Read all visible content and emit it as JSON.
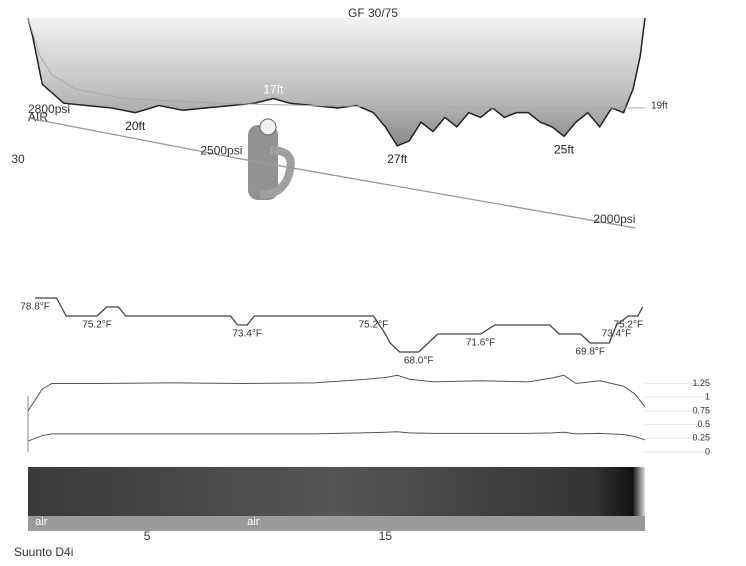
{
  "title": "GF 30/75",
  "dive_computer": "Suunto D4i",
  "tank_label": "AIR",
  "chart_data": {
    "type": "line",
    "x": [
      0,
      0.2,
      0.6,
      1.5,
      2.5,
      3.5,
      4.5,
      5.5,
      6.5,
      7.5,
      8.5,
      9.5,
      10.3,
      11,
      12,
      13,
      13.8,
      14.5,
      15,
      15.5,
      16,
      16.5,
      17,
      17.5,
      18,
      18.5,
      19,
      19.5,
      20,
      20.5,
      21,
      21.5,
      22,
      22.5,
      23,
      23.5,
      24,
      24.5,
      25,
      25.4,
      25.7,
      25.9
    ],
    "values": [
      0,
      4,
      14,
      18,
      18.5,
      19,
      20,
      18.5,
      19.5,
      19,
      18.5,
      18,
      17,
      18,
      18.5,
      19,
      18.5,
      20,
      23,
      27,
      26,
      22,
      24,
      21,
      23,
      20,
      21,
      19,
      21,
      20,
      20,
      22,
      23,
      25,
      22,
      20,
      23,
      19,
      20,
      15,
      8,
      0
    ],
    "value_labels": [
      null,
      null,
      null,
      null,
      null,
      null,
      "20ft",
      null,
      null,
      null,
      null,
      null,
      "17ft",
      null,
      null,
      null,
      null,
      null,
      null,
      "27ft",
      null,
      null,
      null,
      null,
      null,
      null,
      null,
      null,
      null,
      null,
      null,
      null,
      null,
      "25ft",
      null,
      null,
      null,
      null,
      null,
      null,
      null,
      null
    ],
    "xlim": [
      0,
      25.9
    ],
    "xticks": [
      5,
      15
    ],
    "ylim": [
      0,
      30
    ],
    "yticks": [
      30
    ],
    "mean_depth": {
      "x": [
        0,
        0.5,
        1,
        2,
        4,
        8,
        12,
        16,
        20,
        25.9
      ],
      "values": [
        0,
        8,
        12,
        15,
        17,
        18,
        18.5,
        18.8,
        19,
        19
      ],
      "value_labels": [
        null,
        null,
        null,
        null,
        null,
        null,
        null,
        null,
        null,
        "19ft"
      ]
    },
    "pressure": {
      "x": [
        0,
        9,
        25.5
      ],
      "values": [
        2800,
        2500,
        2000
      ],
      "value_labels": [
        "2800psi",
        "2500psi",
        "2000psi"
      ]
    },
    "temperature": {
      "x": [
        0.3,
        1.2,
        1.6,
        2.9,
        3.3,
        3.8,
        4.1,
        8.5,
        8.8,
        9.2,
        9.5,
        14.5,
        15,
        15.2,
        15.6,
        16.4,
        16.8,
        17.2,
        19,
        19.6,
        20,
        21.9,
        22.3,
        23.2,
        23.6,
        24.4,
        24.7,
        25.2,
        25.6,
        25.8
      ],
      "values": [
        78.8,
        78.8,
        75.2,
        75.2,
        77,
        77,
        75.2,
        75.2,
        73.4,
        73.4,
        75.2,
        75.2,
        71.6,
        69.8,
        68.0,
        68.0,
        69.8,
        71.6,
        71.6,
        73.4,
        73.4,
        73.4,
        71.6,
        71.6,
        69.8,
        69.8,
        73.4,
        75.2,
        75.2,
        77
      ],
      "value_labels": [
        "78.8°F",
        null,
        null,
        "75.2°F",
        null,
        null,
        null,
        null,
        null,
        "73.4°F",
        null,
        "75.2°F",
        null,
        null,
        null,
        "68.0°F",
        null,
        null,
        "71.6°F",
        null,
        null,
        null,
        null,
        null,
        "69.8°F",
        null,
        "73.4°F",
        "75.2°F",
        null,
        null
      ]
    },
    "partial_pressures": {
      "ylim": [
        0,
        1.35
      ],
      "yticks": [
        0,
        0.25,
        0.5,
        0.75,
        1,
        1.25
      ],
      "x": [
        0,
        0.3,
        0.6,
        1,
        3,
        6,
        9,
        12,
        14,
        15,
        15.5,
        16,
        17,
        19,
        21,
        22,
        22.5,
        23,
        24,
        25,
        25.5,
        25.9
      ],
      "series": [
        {
          "values": [
            0.75,
            0.95,
            1.15,
            1.25,
            1.25,
            1.26,
            1.25,
            1.26,
            1.32,
            1.36,
            1.4,
            1.33,
            1.28,
            1.3,
            1.28,
            1.35,
            1.4,
            1.25,
            1.3,
            1.2,
            1.05,
            0.82
          ]
        },
        {
          "values": [
            0.2,
            0.25,
            0.3,
            0.33,
            0.33,
            0.33,
            0.33,
            0.33,
            0.35,
            0.36,
            0.37,
            0.35,
            0.34,
            0.34,
            0.34,
            0.35,
            0.36,
            0.33,
            0.34,
            0.32,
            0.28,
            0.22
          ]
        }
      ]
    },
    "gas": {
      "x": [
        0.3,
        9.2
      ],
      "labels": [
        "air",
        "air"
      ]
    }
  }
}
